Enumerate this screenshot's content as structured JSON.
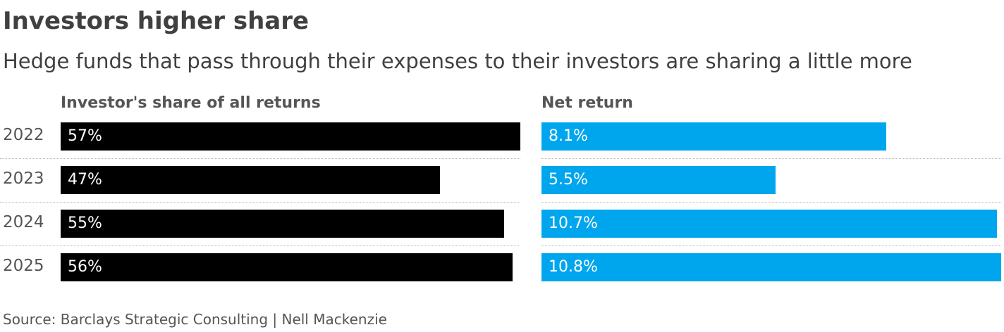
{
  "title": "Investors higher share",
  "subtitle": "Hedge funds that pass through their expenses to their investors are sharing a little more",
  "source": "Source: Barclays Strategic Consulting | Nell Mackenzie",
  "colors": {
    "share_bar": "#000000",
    "return_bar": "#00a6ed",
    "text": "#404040"
  },
  "chart_data": [
    {
      "type": "bar",
      "orientation": "horizontal",
      "title": "Investor's share of all returns",
      "categories": [
        "2022",
        "2023",
        "2024",
        "2025"
      ],
      "values": [
        57,
        47,
        55,
        56
      ],
      "labels": [
        "57%",
        "47%",
        "55%",
        "56%"
      ],
      "unit": "%",
      "xlim": [
        0,
        57
      ],
      "color": "#000000",
      "grid": false
    },
    {
      "type": "bar",
      "orientation": "horizontal",
      "title": "Net return",
      "categories": [
        "2022",
        "2023",
        "2024",
        "2025"
      ],
      "values": [
        8.1,
        5.5,
        10.7,
        10.8
      ],
      "labels": [
        "8.1%",
        "5.5%",
        "10.7%",
        "10.8%"
      ],
      "unit": "%",
      "xlim": [
        0,
        10.8
      ],
      "color": "#00a6ed",
      "grid": false
    }
  ]
}
